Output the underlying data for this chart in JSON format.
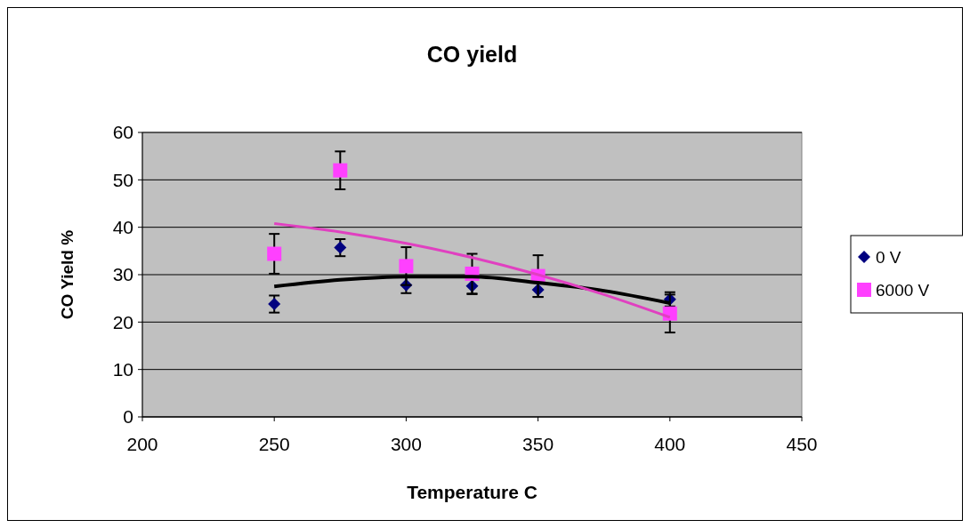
{
  "chart_data": {
    "type": "scatter",
    "title": "CO yield",
    "xlabel": "Temperature  C",
    "ylabel": "CO Yield %",
    "xlim": [
      200,
      450
    ],
    "xticks": [
      200,
      250,
      300,
      350,
      400,
      450
    ],
    "ylim": [
      0,
      60
    ],
    "yticks": [
      0,
      10,
      20,
      30,
      40,
      50,
      60
    ],
    "grid": "y",
    "legend": "right",
    "series": [
      {
        "name": "0 V",
        "color": "#000080",
        "marker": "diamond",
        "x": [
          250,
          275,
          300,
          325,
          350,
          400
        ],
        "values": [
          23.8,
          35.7,
          27.8,
          27.6,
          26.8,
          24.8
        ],
        "errors": [
          1.8,
          1.8,
          1.7,
          1.7,
          1.5,
          1.5
        ]
      },
      {
        "name": "6000 V",
        "color": "#ff40ff",
        "marker": "square",
        "x": [
          250,
          275,
          300,
          325,
          350,
          400
        ],
        "values": [
          34.4,
          52,
          31.8,
          30.2,
          29.7,
          21.8
        ],
        "errors": [
          4.2,
          4,
          4,
          4.2,
          4.4,
          4
        ]
      },
      {
        "type": "line",
        "color": "#000000",
        "marker": "none",
        "x": [
          250,
          275,
          300,
          325,
          350,
          375,
          400
        ],
        "values": [
          27.5,
          28.9,
          29.6,
          29.6,
          28.3,
          26.6,
          24.0
        ]
      },
      {
        "type": "line",
        "color": "#e040c0",
        "marker": "none",
        "x": [
          250,
          275,
          300,
          325,
          350,
          375,
          400
        ],
        "values": [
          40.8,
          39.0,
          36.6,
          33.6,
          30.0,
          25.8,
          21.0
        ]
      }
    ]
  }
}
